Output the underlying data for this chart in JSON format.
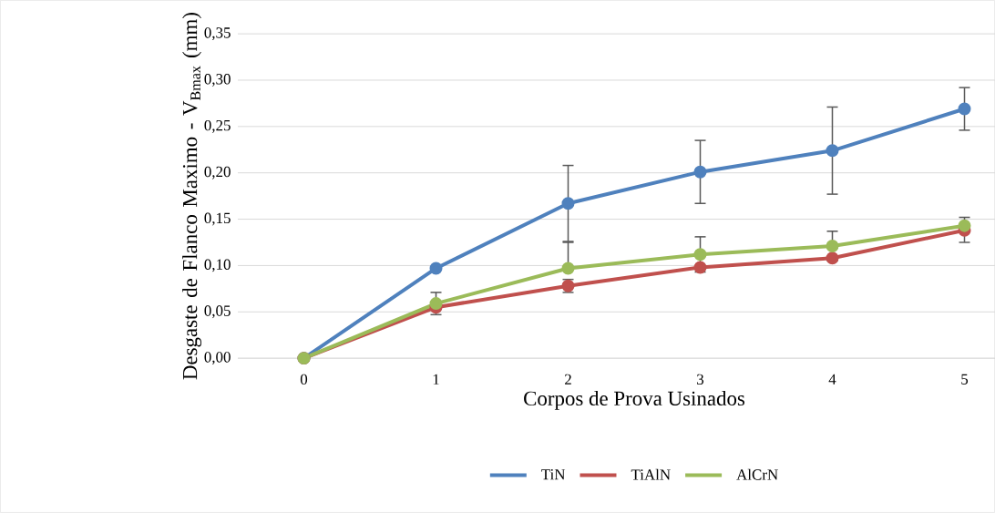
{
  "chart_data": {
    "type": "line",
    "xlabel": "Corpos de Prova Usinados",
    "ylabel": "Desgaste de Flanco Maximo - V$_{Bmax}$ (mm)",
    "categories": [
      "0",
      "1",
      "2",
      "3",
      "4",
      "5"
    ],
    "series": [
      {
        "name": "TiN",
        "color": "#4f81bd",
        "values": [
          0,
          0.097,
          0.167,
          0.201,
          0.224,
          0.269
        ],
        "errors": [
          null,
          null,
          0.041,
          0.034,
          0.047,
          0.023
        ]
      },
      {
        "name": "TiAlN",
        "color": "#c0504d",
        "values": [
          0,
          0.055,
          0.078,
          0.098,
          0.108,
          0.138
        ],
        "errors": [
          null,
          [
            0.047,
            0.055
          ],
          0.007,
          null,
          null,
          [
            0.125,
            0.138
          ]
        ]
      },
      {
        "name": "AlCrN",
        "color": "#9bbb59",
        "values": [
          0,
          0.059,
          0.097,
          0.112,
          0.121,
          0.143
        ],
        "errors": [
          null,
          [
            0.059,
            0.071
          ],
          [
            0.097,
            0.125
          ],
          0.019,
          0.016,
          [
            0.143,
            0.152
          ]
        ]
      }
    ],
    "ylim": [
      0,
      0.35
    ],
    "yticks": [
      {
        "value": 0,
        "label": "0,00"
      },
      {
        "value": 0.05,
        "label": "0,05"
      },
      {
        "value": 0.1,
        "label": "0,10"
      },
      {
        "value": 0.15,
        "label": "0,15"
      },
      {
        "value": 0.2,
        "label": "0,20"
      },
      {
        "value": 0.25,
        "label": "0,25"
      },
      {
        "value": 0.3,
        "label": "0,30"
      },
      {
        "value": 0.35,
        "label": "0,35"
      }
    ],
    "grid": "y",
    "legend": "bottom",
    "marker": "circle",
    "line_style": "solid"
  }
}
